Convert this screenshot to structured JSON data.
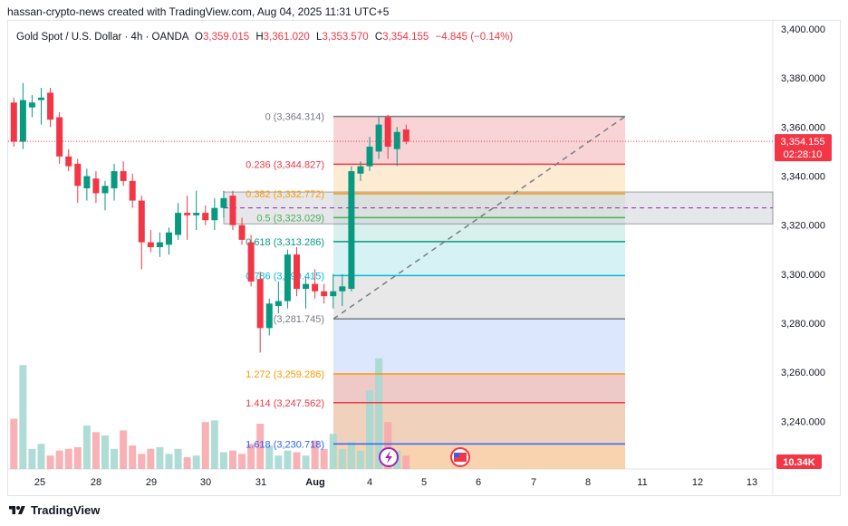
{
  "caption": "hassan-crypto-news created with TradingView.com, Aug 04, 2025 11:31 UTC+5",
  "header": {
    "symbol": "Gold Spot / U.S. Dollar · 4h · OANDA",
    "o_label": "O",
    "o_value": "3,359.015",
    "h_label": "H",
    "h_value": "3,361.020",
    "l_label": "L",
    "l_value": "3,353.570",
    "c_label": "C",
    "c_value": "3,354.155",
    "change": "−4.845 (−0.14%)"
  },
  "footer": {
    "brand": "TradingView"
  },
  "colors": {
    "up": "#089981",
    "down": "#f23645",
    "vol_up": "#a6d9d1",
    "vol_down": "#f7a9ac",
    "price_tag": "#f23645",
    "volume_tag": "#f23645"
  },
  "chart_data": {
    "type": "candlestick",
    "interval": "4h",
    "x_tick_labels": [
      "25",
      "28",
      "29",
      "30",
      "31",
      "Aug",
      "4",
      "5",
      "6",
      "7",
      "8",
      "11",
      "12",
      "13"
    ],
    "y_ticks": [
      3240,
      3260,
      3280,
      3300,
      3320,
      3340,
      3360,
      3380,
      3400
    ],
    "y_tick_labels": [
      "3,240.000",
      "3,260.000",
      "3,280.000",
      "3,300.000",
      "3,320.000",
      "3,340.000",
      "3,360.000",
      "3,380.000",
      "3,400.000"
    ],
    "ylim": [
      3223,
      3405
    ],
    "candles": [
      {
        "o": 3370,
        "h": 3372,
        "l": 3352,
        "c": 3354
      },
      {
        "o": 3354,
        "h": 3378,
        "l": 3351,
        "c": 3371
      },
      {
        "o": 3368,
        "h": 3373,
        "l": 3364,
        "c": 3370
      },
      {
        "o": 3371,
        "h": 3376,
        "l": 3361,
        "c": 3372
      },
      {
        "o": 3374,
        "h": 3376,
        "l": 3360,
        "c": 3363
      },
      {
        "o": 3364,
        "h": 3366,
        "l": 3345,
        "c": 3348
      },
      {
        "o": 3348,
        "h": 3351,
        "l": 3342,
        "c": 3344
      },
      {
        "o": 3345,
        "h": 3347,
        "l": 3329,
        "c": 3336
      },
      {
        "o": 3335,
        "h": 3343,
        "l": 3330,
        "c": 3340
      },
      {
        "o": 3339,
        "h": 3342,
        "l": 3329,
        "c": 3333
      },
      {
        "o": 3333,
        "h": 3338,
        "l": 3326,
        "c": 3336
      },
      {
        "o": 3335,
        "h": 3345,
        "l": 3330,
        "c": 3342
      },
      {
        "o": 3342,
        "h": 3346,
        "l": 3336,
        "c": 3338
      },
      {
        "o": 3338,
        "h": 3341,
        "l": 3327,
        "c": 3330
      },
      {
        "o": 3330,
        "h": 3332,
        "l": 3302,
        "c": 3313
      },
      {
        "o": 3313,
        "h": 3318,
        "l": 3309,
        "c": 3311
      },
      {
        "o": 3311,
        "h": 3317,
        "l": 3307,
        "c": 3313
      },
      {
        "o": 3312,
        "h": 3319,
        "l": 3308,
        "c": 3317
      },
      {
        "o": 3316,
        "h": 3329,
        "l": 3314,
        "c": 3325
      },
      {
        "o": 3325,
        "h": 3332,
        "l": 3314,
        "c": 3324
      },
      {
        "o": 3324,
        "h": 3334,
        "l": 3318,
        "c": 3325
      },
      {
        "o": 3325,
        "h": 3328,
        "l": 3320,
        "c": 3322
      },
      {
        "o": 3322,
        "h": 3331,
        "l": 3318,
        "c": 3327
      },
      {
        "o": 3327,
        "h": 3334,
        "l": 3323,
        "c": 3331
      },
      {
        "o": 3332,
        "h": 3334,
        "l": 3318,
        "c": 3320
      },
      {
        "o": 3320,
        "h": 3323,
        "l": 3312,
        "c": 3314
      },
      {
        "o": 3313,
        "h": 3316,
        "l": 3295,
        "c": 3297
      },
      {
        "o": 3298,
        "h": 3301,
        "l": 3268,
        "c": 3278
      },
      {
        "o": 3278,
        "h": 3290,
        "l": 3275,
        "c": 3288
      },
      {
        "o": 3287,
        "h": 3297,
        "l": 3284,
        "c": 3289
      },
      {
        "o": 3289,
        "h": 3310,
        "l": 3286,
        "c": 3308
      },
      {
        "o": 3308,
        "h": 3311,
        "l": 3291,
        "c": 3294
      },
      {
        "o": 3294,
        "h": 3299,
        "l": 3286,
        "c": 3296
      },
      {
        "o": 3296,
        "h": 3302,
        "l": 3290,
        "c": 3293
      },
      {
        "o": 3293,
        "h": 3296,
        "l": 3288,
        "c": 3291
      },
      {
        "o": 3291,
        "h": 3300,
        "l": 3286,
        "c": 3293
      },
      {
        "o": 3293,
        "h": 3300,
        "l": 3287,
        "c": 3295
      },
      {
        "o": 3294,
        "h": 3344,
        "l": 3293,
        "c": 3342
      },
      {
        "o": 3341,
        "h": 3346,
        "l": 3338,
        "c": 3344
      },
      {
        "o": 3344,
        "h": 3356,
        "l": 3342,
        "c": 3352
      },
      {
        "o": 3350,
        "h": 3364,
        "l": 3347,
        "c": 3361
      },
      {
        "o": 3364,
        "h": 3365,
        "l": 3347,
        "c": 3352
      },
      {
        "o": 3351,
        "h": 3360,
        "l": 3344,
        "c": 3358
      },
      {
        "o": 3359,
        "h": 3361,
        "l": 3353,
        "c": 3354
      }
    ],
    "volumes": [
      30,
      62,
      12,
      15,
      8,
      11,
      12,
      13,
      26,
      22,
      20,
      12,
      23,
      14,
      9,
      12,
      13,
      9,
      12,
      7,
      8,
      28,
      29,
      10,
      11,
      9,
      15,
      27,
      14,
      8,
      11,
      10,
      8,
      17,
      12,
      21,
      12,
      16,
      11,
      47,
      66,
      28,
      11,
      8
    ],
    "fibonacci": [
      {
        "label": "0 (3,364.314)",
        "price": 3364.314,
        "color": "#787b86"
      },
      {
        "label": "0.236 (3,344.827)",
        "price": 3344.827,
        "color": "#f23645"
      },
      {
        "label": "0.382 (3,332.772)",
        "price": 3332.772,
        "color": "#ff9800"
      },
      {
        "label": "0.5 (3,323.029)",
        "price": 3323.029,
        "color": "#4caf50"
      },
      {
        "label": "0.618 (3,313.286)",
        "price": 3313.286,
        "color": "#089981"
      },
      {
        "label": "0.786 (3,299.415)",
        "price": 3299.415,
        "color": "#00bcd4"
      },
      {
        "label": "1 (3,281.745)",
        "price": 3281.745,
        "color": "#787b86"
      },
      {
        "label": "1.272 (3,259.286)",
        "price": 3259.286,
        "color": "#ff9800"
      },
      {
        "label": "1.414 (3,247.562)",
        "price": 3247.562,
        "color": "#f23645"
      },
      {
        "label": "1.618 (3,230.718)",
        "price": 3230.718,
        "color": "#2962ff"
      }
    ],
    "zone": {
      "top": 3333.5,
      "bottom": 3320.5
    },
    "last_price_label": "3,354.155",
    "last_price": 3354.155,
    "countdown": "02:28:10",
    "volume_label": "10.34K"
  }
}
